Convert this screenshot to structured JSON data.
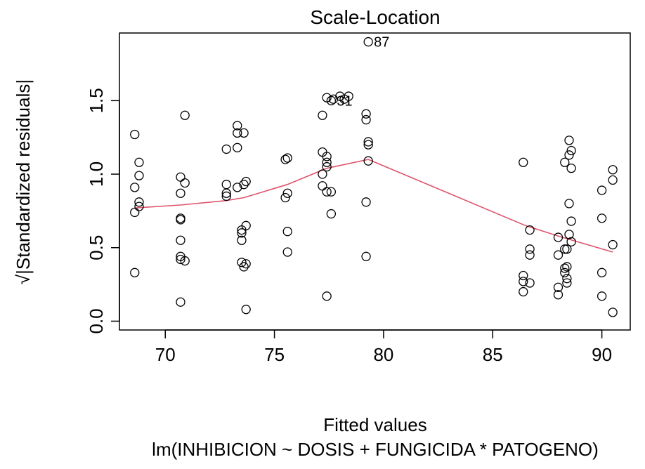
{
  "chart_data": {
    "type": "scatter",
    "title": "Scale-Location",
    "xlabel": "Fitted values",
    "ylabel": "√|Standardized residuals|",
    "subtitle": "lm(INHIBICION ~ DOSIS + FUNGICIDA * PATOGENO)",
    "xlim": [
      67.9,
      91.3
    ],
    "ylim": [
      -0.06,
      1.96
    ],
    "x_ticks": [
      70,
      75,
      80,
      85,
      90
    ],
    "x_tick_labels": [
      "70",
      "75",
      "80",
      "85",
      "90"
    ],
    "y_ticks": [
      0.0,
      0.5,
      1.0,
      1.5
    ],
    "y_tick_labels": [
      "0.0",
      "0.5",
      "1.0",
      "1.5"
    ],
    "grid": false,
    "point_color": "#000000",
    "smoother_color": "#DF536B",
    "points": [
      [
        68.6,
        1.27
      ],
      [
        68.6,
        0.91
      ],
      [
        68.6,
        0.74
      ],
      [
        68.6,
        0.33
      ],
      [
        68.8,
        1.08
      ],
      [
        68.8,
        0.99
      ],
      [
        68.8,
        0.81
      ],
      [
        68.8,
        0.78
      ],
      [
        70.7,
        0.98
      ],
      [
        70.7,
        0.87
      ],
      [
        70.7,
        0.7
      ],
      [
        70.7,
        0.69
      ],
      [
        70.7,
        0.55
      ],
      [
        70.7,
        0.44
      ],
      [
        70.7,
        0.42
      ],
      [
        70.7,
        0.13
      ],
      [
        70.9,
        1.4
      ],
      [
        70.9,
        0.94
      ],
      [
        70.9,
        0.41
      ],
      [
        72.8,
        1.17
      ],
      [
        72.8,
        0.93
      ],
      [
        72.8,
        0.87
      ],
      [
        72.8,
        0.85
      ],
      [
        73.3,
        1.33
      ],
      [
        73.3,
        1.28
      ],
      [
        73.3,
        1.18
      ],
      [
        73.3,
        0.91
      ],
      [
        73.5,
        0.62
      ],
      [
        73.5,
        0.6
      ],
      [
        73.5,
        0.55
      ],
      [
        73.5,
        0.4
      ],
      [
        73.6,
        1.28
      ],
      [
        73.6,
        0.93
      ],
      [
        73.6,
        0.37
      ],
      [
        73.7,
        0.95
      ],
      [
        73.7,
        0.65
      ],
      [
        73.7,
        0.39
      ],
      [
        73.7,
        0.08
      ],
      [
        75.5,
        1.1
      ],
      [
        75.5,
        0.84
      ],
      [
        75.6,
        1.11
      ],
      [
        75.6,
        0.87
      ],
      [
        75.6,
        0.61
      ],
      [
        75.6,
        0.47
      ],
      [
        77.2,
        1.4
      ],
      [
        77.2,
        1.15
      ],
      [
        77.2,
        1.0
      ],
      [
        77.2,
        0.92
      ],
      [
        77.4,
        1.52
      ],
      [
        77.4,
        1.12
      ],
      [
        77.4,
        1.08
      ],
      [
        77.4,
        1.05
      ],
      [
        77.4,
        0.88
      ],
      [
        77.4,
        0.17
      ],
      [
        77.6,
        1.5
      ],
      [
        77.6,
        0.88
      ],
      [
        77.6,
        0.73
      ],
      [
        77.7,
        1.51
      ],
      [
        78.0,
        1.53
      ],
      [
        78.2,
        1.51
      ],
      [
        78.4,
        1.53
      ],
      [
        79.2,
        1.41
      ],
      [
        79.2,
        1.37
      ],
      [
        79.2,
        0.81
      ],
      [
        79.2,
        0.44
      ],
      [
        79.3,
        1.22
      ],
      [
        79.3,
        1.2
      ],
      [
        79.3,
        1.09
      ],
      [
        79.3,
        1.9
      ],
      [
        86.4,
        1.08
      ],
      [
        86.4,
        0.31
      ],
      [
        86.4,
        0.27
      ],
      [
        86.4,
        0.2
      ],
      [
        86.7,
        0.62
      ],
      [
        86.7,
        0.49
      ],
      [
        86.7,
        0.45
      ],
      [
        86.7,
        0.26
      ],
      [
        88.0,
        0.57
      ],
      [
        88.0,
        0.45
      ],
      [
        88.0,
        0.23
      ],
      [
        88.0,
        0.18
      ],
      [
        88.3,
        1.08
      ],
      [
        88.3,
        0.49
      ],
      [
        88.3,
        0.36
      ],
      [
        88.3,
        0.33
      ],
      [
        88.4,
        0.49
      ],
      [
        88.4,
        0.37
      ],
      [
        88.4,
        0.29
      ],
      [
        88.4,
        0.26
      ],
      [
        88.5,
        1.23
      ],
      [
        88.5,
        1.13
      ],
      [
        88.5,
        0.8
      ],
      [
        88.5,
        0.59
      ],
      [
        88.6,
        1.16
      ],
      [
        88.6,
        1.04
      ],
      [
        88.6,
        0.68
      ],
      [
        88.6,
        0.54
      ],
      [
        90.0,
        0.89
      ],
      [
        90.0,
        0.7
      ],
      [
        90.0,
        0.33
      ],
      [
        90.0,
        0.17
      ],
      [
        90.5,
        1.03
      ],
      [
        90.5,
        0.96
      ],
      [
        90.5,
        0.52
      ],
      [
        90.5,
        0.06
      ]
    ],
    "smoother": [
      [
        68.6,
        0.77
      ],
      [
        70.7,
        0.79
      ],
      [
        72.8,
        0.82
      ],
      [
        73.6,
        0.84
      ],
      [
        75.6,
        0.93
      ],
      [
        77.4,
        1.04
      ],
      [
        79.3,
        1.1
      ],
      [
        86.5,
        0.65
      ],
      [
        88.2,
        0.57
      ],
      [
        90.5,
        0.47
      ]
    ],
    "annotations": [
      {
        "x": 79.3,
        "y": 1.9,
        "label": "87"
      },
      {
        "x": 77.6,
        "y": 1.5,
        "label": "31"
      }
    ]
  }
}
